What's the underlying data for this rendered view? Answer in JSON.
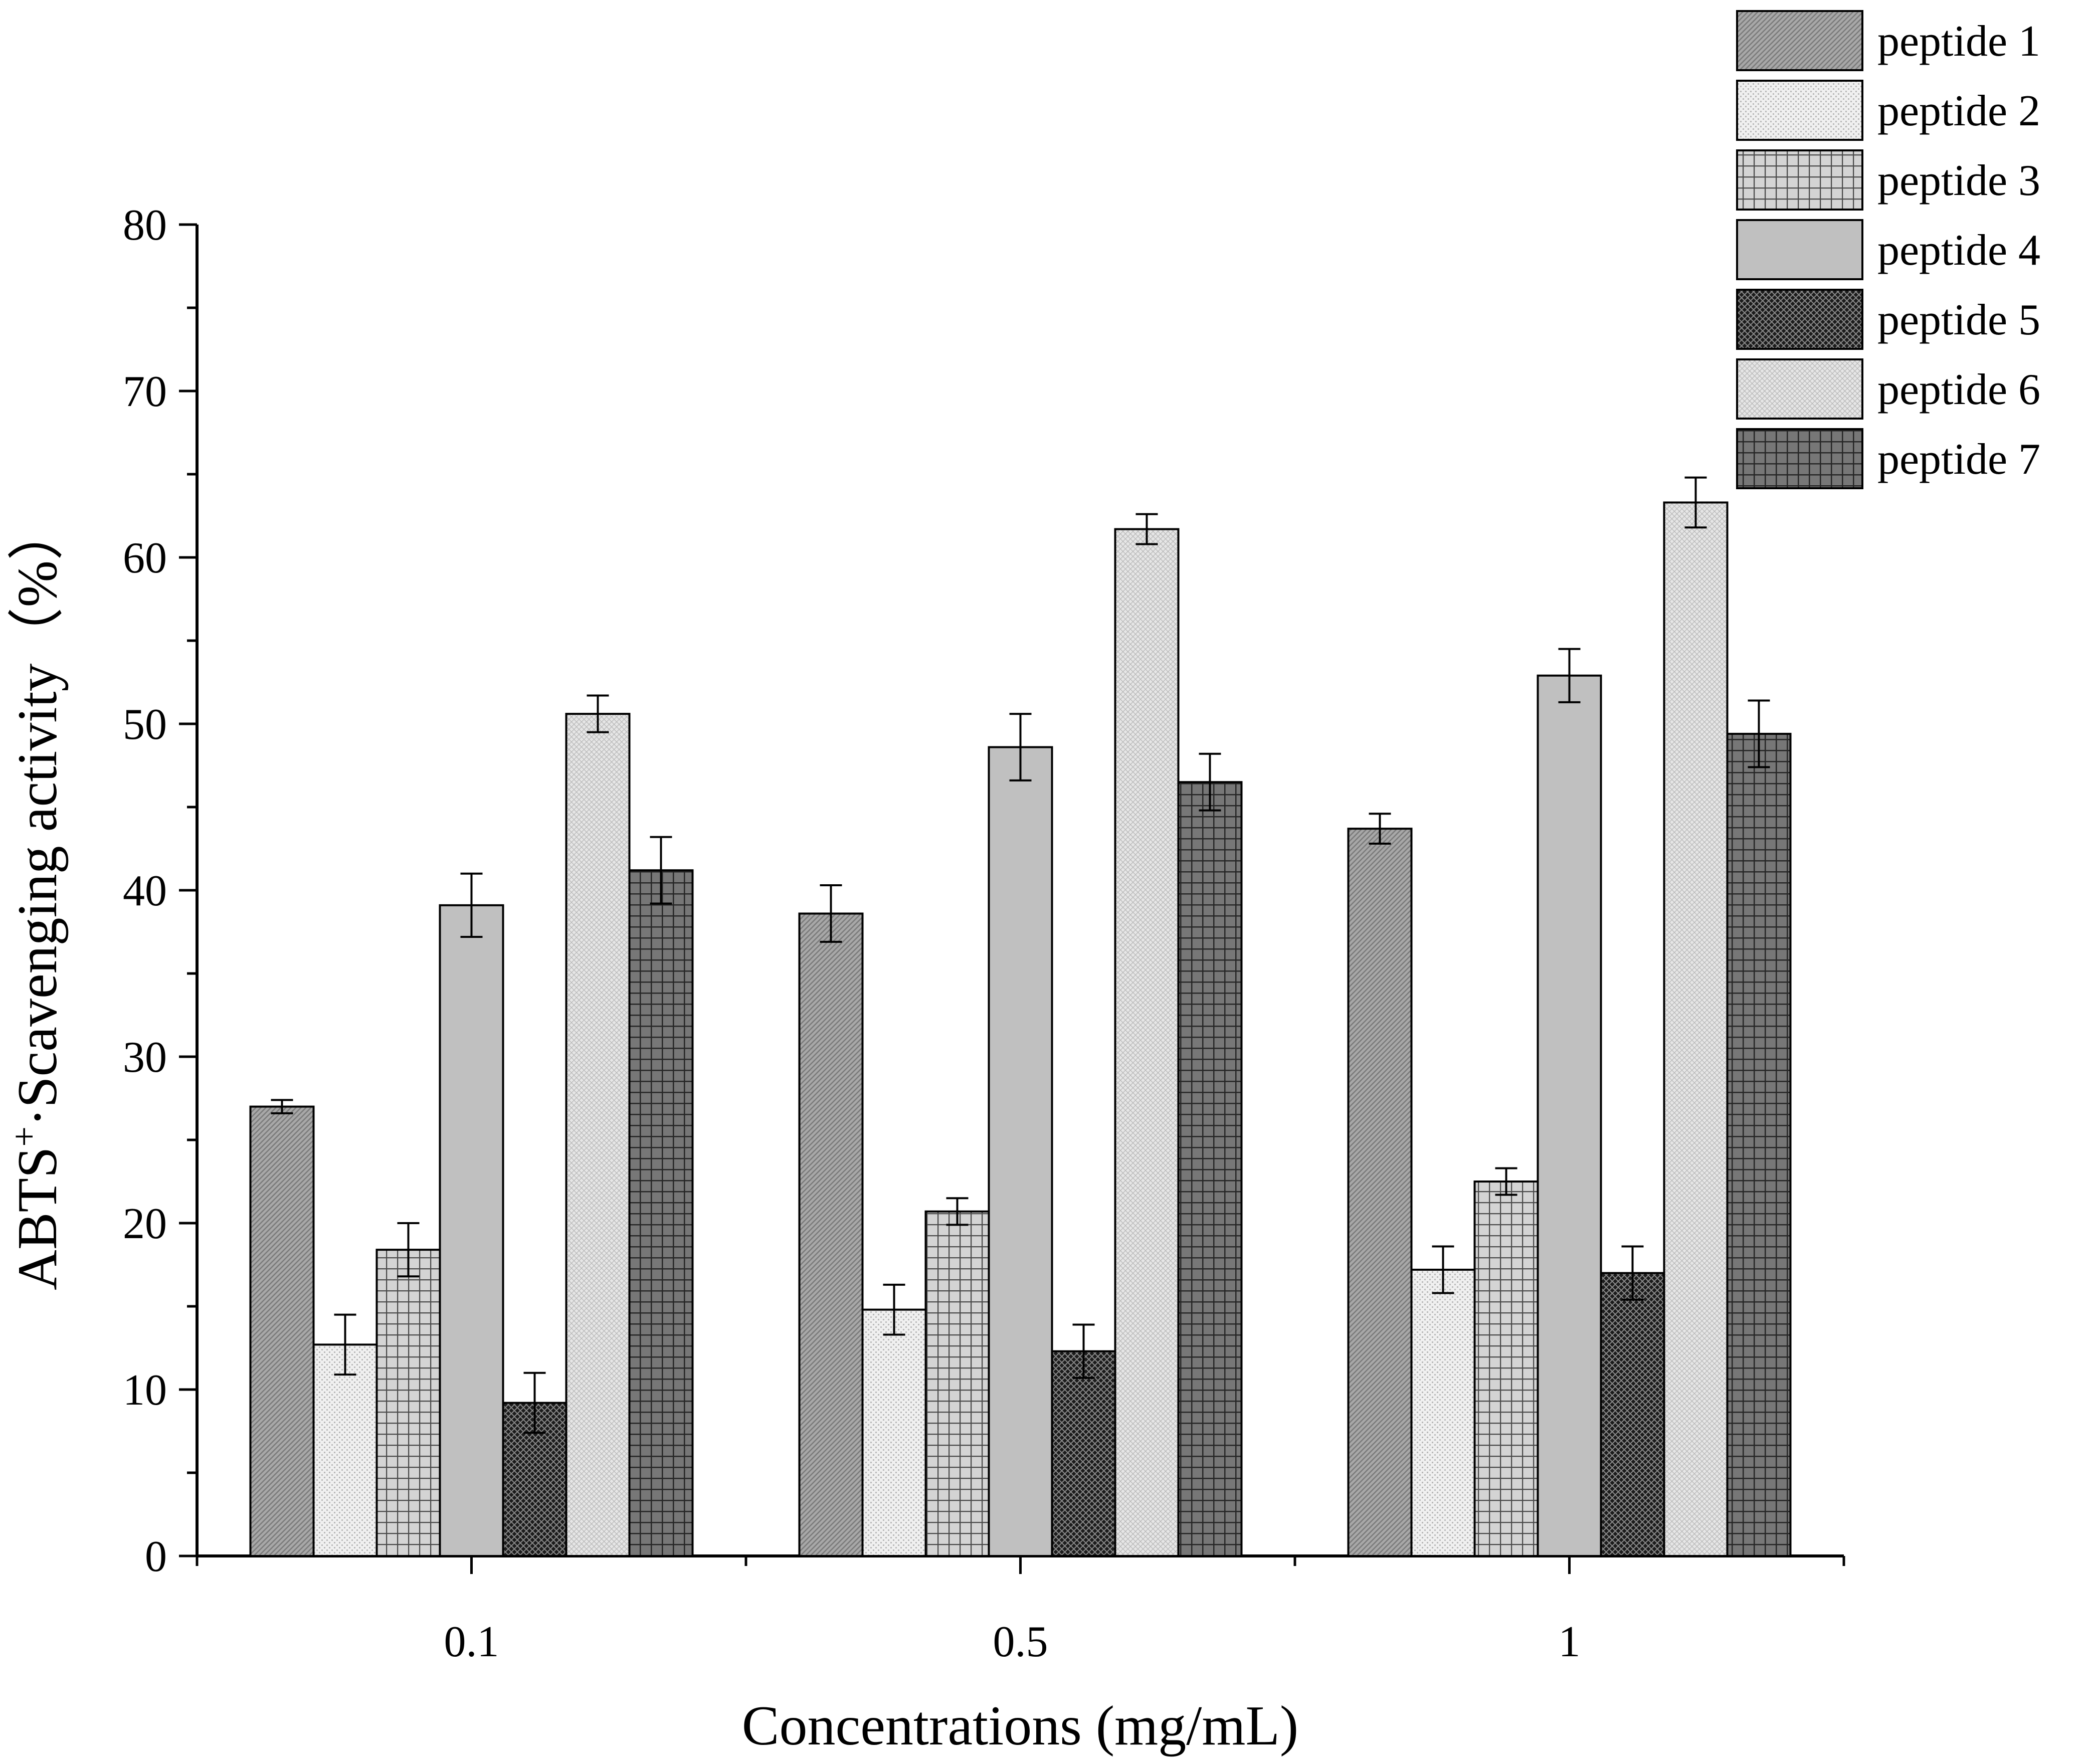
{
  "chart_data": {
    "type": "bar",
    "title": "",
    "xlabel": "Concentrations (mg/mL)",
    "ylabel": {
      "main": "ABTS",
      "superscript": "+",
      "rest": "·Scavenging activity（%）"
    },
    "ylim": [
      0,
      80
    ],
    "yticks": [
      "0",
      "10",
      "20",
      "30",
      "40",
      "50",
      "60",
      "70",
      "80"
    ],
    "categories": [
      "0.1",
      "0.5",
      "1"
    ],
    "legend_position": "top-right",
    "series": [
      {
        "name": "peptide 1",
        "values": [
          27.0,
          38.6,
          43.7
        ],
        "errors": [
          0.4,
          1.7,
          0.9
        ],
        "fill": "#a8a8a8",
        "pattern": "fine-diagonal"
      },
      {
        "name": "peptide 2",
        "values": [
          12.7,
          14.8,
          17.2
        ],
        "errors": [
          1.8,
          1.5,
          1.4
        ],
        "fill": "#ebebeb",
        "pattern": "fine-dots"
      },
      {
        "name": "peptide 3",
        "values": [
          18.4,
          20.7,
          22.5
        ],
        "errors": [
          1.6,
          0.8,
          0.8
        ],
        "fill": "#c4c4c4",
        "pattern": "grid"
      },
      {
        "name": "peptide 4",
        "values": [
          39.1,
          48.6,
          52.9
        ],
        "errors": [
          1.9,
          2.0,
          1.6
        ],
        "fill": "#c0c0c0",
        "pattern": "solid"
      },
      {
        "name": "peptide 5",
        "values": [
          9.2,
          12.3,
          17.0
        ],
        "errors": [
          1.8,
          1.6,
          1.6
        ],
        "fill": "#2a2a2a",
        "pattern": "crosshatch"
      },
      {
        "name": "peptide 6",
        "values": [
          50.6,
          61.7,
          63.3
        ],
        "errors": [
          1.1,
          0.9,
          1.5
        ],
        "fill": "#e2e2e2",
        "pattern": "light-dots"
      },
      {
        "name": "peptide 7",
        "values": [
          41.2,
          46.5,
          49.4
        ],
        "errors": [
          2.0,
          1.7,
          2.0
        ],
        "fill": "#6e6e6e",
        "pattern": "dark-grid"
      }
    ]
  }
}
